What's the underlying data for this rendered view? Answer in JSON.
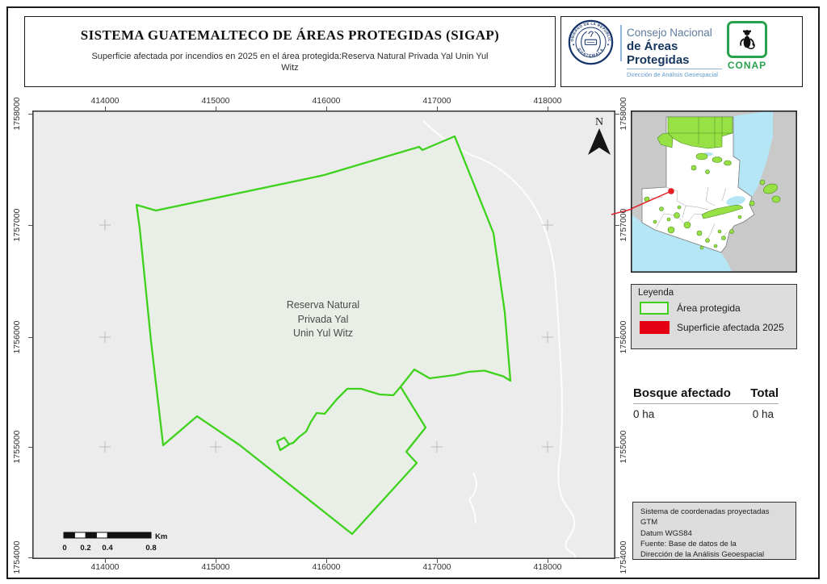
{
  "header": {
    "title": "SISTEMA GUATEMALTECO DE ÁREAS PROTEGIDAS  (SIGAP)",
    "subtitle": "Superficie afectada por incendios en 2025 en el área protegida:Reserva Natural Privada Yal Unin Yul Witz"
  },
  "logos": {
    "seal_top_text": "GOBIERNO DE LA REPÚBLICA",
    "seal_bottom_text": "GUATEMALA",
    "conap_line1": "Consejo Nacional",
    "conap_line2": "de Áreas Protegidas",
    "conap_line3": "Dirección de Análisis Geoespacial",
    "conap_acronym": "CONAP"
  },
  "map": {
    "north_label": "N",
    "area_label_lines": [
      "Reserva Natural",
      "Privada Yal",
      "Unin Yul Witz"
    ],
    "x_ticks": [
      "414000",
      "415000",
      "416000",
      "417000",
      "418000"
    ],
    "y_ticks": [
      "1758000",
      "1757000",
      "1756000",
      "1755000",
      "1754000"
    ]
  },
  "scalebar": {
    "labels": [
      "0",
      "0.2",
      "0.4",
      "0.8"
    ],
    "unit": "Km"
  },
  "legend": {
    "title": "Leyenda",
    "items": [
      {
        "label": "Área protegida",
        "color": "#3ed21c"
      },
      {
        "label": "Superficie afectada 2025",
        "color": "#e60013"
      }
    ]
  },
  "stats": {
    "col1_header": "Bosque afectado",
    "col2_header": "Total",
    "col1_value": "0 ha",
    "col2_value": "0 ha"
  },
  "credits": {
    "lines": [
      "Sistema de coordenadas proyectadas",
      "GTM",
      "Datum WGS84",
      "Fuente: Base de datos de la",
      "Dirección de la Análisis Geoespacial"
    ]
  },
  "colors": {
    "protected_outline": "#3ed21c",
    "affected_fill": "#e60013",
    "map_background": "#ececec",
    "polygon_fill": "#e9eee7",
    "inset_protected": "#97e145",
    "inset_water": "#b5e6f5",
    "locator_red": "#e51e25"
  }
}
